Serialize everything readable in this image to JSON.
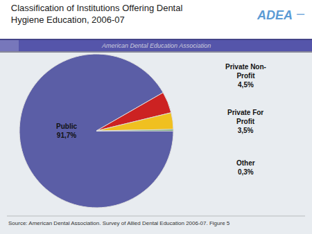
{
  "chart_data": {
    "type": "pie",
    "title": "Classification of Institutions Offering Dental\nHygiene Education, 2006-07",
    "subtitle": "American Dental Education Association",
    "categories": [
      "Public",
      "Private Non-\nProfit",
      "Private For\nProfit",
      "Other"
    ],
    "values": [
      91.7,
      4.5,
      3.5,
      0.3
    ],
    "value_labels": [
      "91,7%",
      "4,5%",
      "3,5%",
      "0,3%"
    ],
    "colors": [
      "#5B5EA6",
      "#CC2222",
      "#F0C020",
      "#3A8A3A"
    ],
    "annotations": [
      "ADEA",
      "—",
      "Source: American Dental Association. Survey of Allied Dental Education 2006-07. Figure 5"
    ]
  }
}
